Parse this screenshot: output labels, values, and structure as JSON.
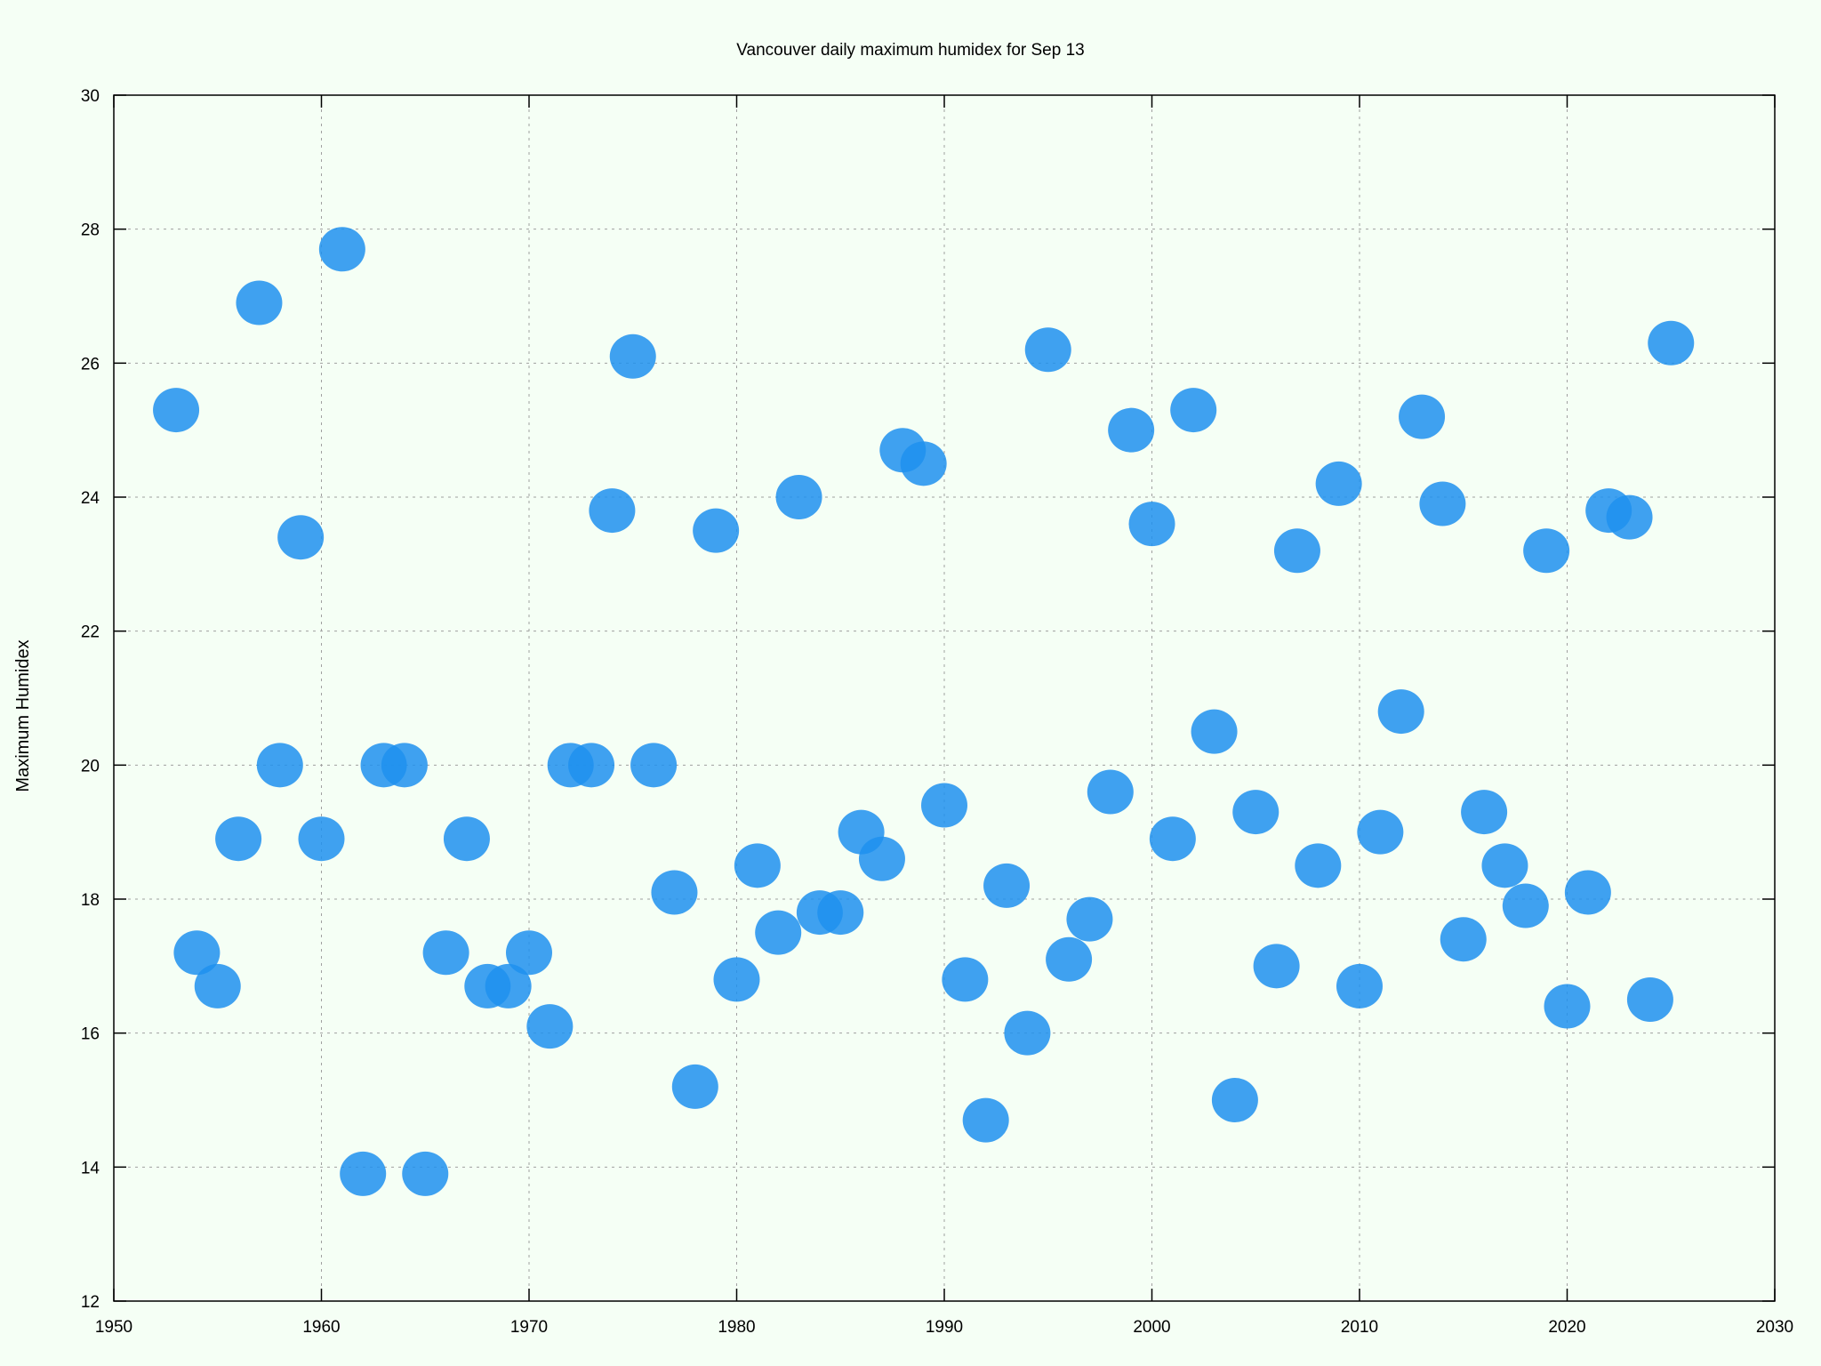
{
  "chart_data": {
    "type": "scatter",
    "title": "Vancouver daily maximum humidex for Sep 13",
    "xlabel": "",
    "ylabel": "Maximum Humidex",
    "xlim": [
      1950,
      2030
    ],
    "ylim": [
      12,
      30
    ],
    "xticks": [
      "1950",
      "1960",
      "1970",
      "1980",
      "1990",
      "2000",
      "2010",
      "2020",
      "2030"
    ],
    "yticks": [
      "12",
      "14",
      "16",
      "18",
      "20",
      "22",
      "24",
      "26",
      "28",
      "30"
    ],
    "grid": true,
    "point_color": "#1e90ee",
    "series": [
      {
        "points": [
          {
            "x": 1953,
            "y": 25.3
          },
          {
            "x": 1954,
            "y": 17.2
          },
          {
            "x": 1955,
            "y": 16.7
          },
          {
            "x": 1956,
            "y": 18.9
          },
          {
            "x": 1957,
            "y": 26.9
          },
          {
            "x": 1958,
            "y": 20.0
          },
          {
            "x": 1959,
            "y": 23.4
          },
          {
            "x": 1960,
            "y": 18.9
          },
          {
            "x": 1961,
            "y": 27.7
          },
          {
            "x": 1962,
            "y": 13.9
          },
          {
            "x": 1963,
            "y": 20.0
          },
          {
            "x": 1964,
            "y": 20.0
          },
          {
            "x": 1965,
            "y": 13.9
          },
          {
            "x": 1966,
            "y": 17.2
          },
          {
            "x": 1967,
            "y": 18.9
          },
          {
            "x": 1968,
            "y": 16.7
          },
          {
            "x": 1969,
            "y": 16.7
          },
          {
            "x": 1970,
            "y": 17.2
          },
          {
            "x": 1971,
            "y": 16.1
          },
          {
            "x": 1972,
            "y": 20.0
          },
          {
            "x": 1973,
            "y": 20.0
          },
          {
            "x": 1974,
            "y": 23.8
          },
          {
            "x": 1975,
            "y": 26.1
          },
          {
            "x": 1976,
            "y": 20.0
          },
          {
            "x": 1977,
            "y": 18.1
          },
          {
            "x": 1978,
            "y": 15.2
          },
          {
            "x": 1979,
            "y": 23.5
          },
          {
            "x": 1980,
            "y": 16.8
          },
          {
            "x": 1981,
            "y": 18.5
          },
          {
            "x": 1982,
            "y": 17.5
          },
          {
            "x": 1983,
            "y": 24.0
          },
          {
            "x": 1984,
            "y": 17.8
          },
          {
            "x": 1985,
            "y": 17.8
          },
          {
            "x": 1986,
            "y": 19.0
          },
          {
            "x": 1987,
            "y": 18.6
          },
          {
            "x": 1988,
            "y": 24.7
          },
          {
            "x": 1989,
            "y": 24.5
          },
          {
            "x": 1990,
            "y": 19.4
          },
          {
            "x": 1991,
            "y": 16.8
          },
          {
            "x": 1992,
            "y": 14.7
          },
          {
            "x": 1993,
            "y": 18.2
          },
          {
            "x": 1994,
            "y": 16.0
          },
          {
            "x": 1995,
            "y": 26.2
          },
          {
            "x": 1996,
            "y": 17.1
          },
          {
            "x": 1997,
            "y": 17.7
          },
          {
            "x": 1998,
            "y": 19.6
          },
          {
            "x": 1999,
            "y": 25.0
          },
          {
            "x": 2000,
            "y": 23.6
          },
          {
            "x": 2001,
            "y": 18.9
          },
          {
            "x": 2002,
            "y": 25.3
          },
          {
            "x": 2003,
            "y": 20.5
          },
          {
            "x": 2004,
            "y": 15.0
          },
          {
            "x": 2005,
            "y": 19.3
          },
          {
            "x": 2006,
            "y": 17.0
          },
          {
            "x": 2007,
            "y": 23.2
          },
          {
            "x": 2008,
            "y": 18.5
          },
          {
            "x": 2009,
            "y": 24.2
          },
          {
            "x": 2010,
            "y": 16.7
          },
          {
            "x": 2011,
            "y": 19.0
          },
          {
            "x": 2012,
            "y": 20.8
          },
          {
            "x": 2013,
            "y": 25.2
          },
          {
            "x": 2014,
            "y": 23.9
          },
          {
            "x": 2015,
            "y": 17.4
          },
          {
            "x": 2016,
            "y": 19.3
          },
          {
            "x": 2017,
            "y": 18.5
          },
          {
            "x": 2018,
            "y": 17.9
          },
          {
            "x": 2019,
            "y": 23.2
          },
          {
            "x": 2020,
            "y": 16.4
          },
          {
            "x": 2021,
            "y": 18.1
          },
          {
            "x": 2022,
            "y": 23.8
          },
          {
            "x": 2023,
            "y": 23.7
          },
          {
            "x": 2024,
            "y": 16.5
          },
          {
            "x": 2025,
            "y": 26.3
          }
        ]
      }
    ]
  }
}
